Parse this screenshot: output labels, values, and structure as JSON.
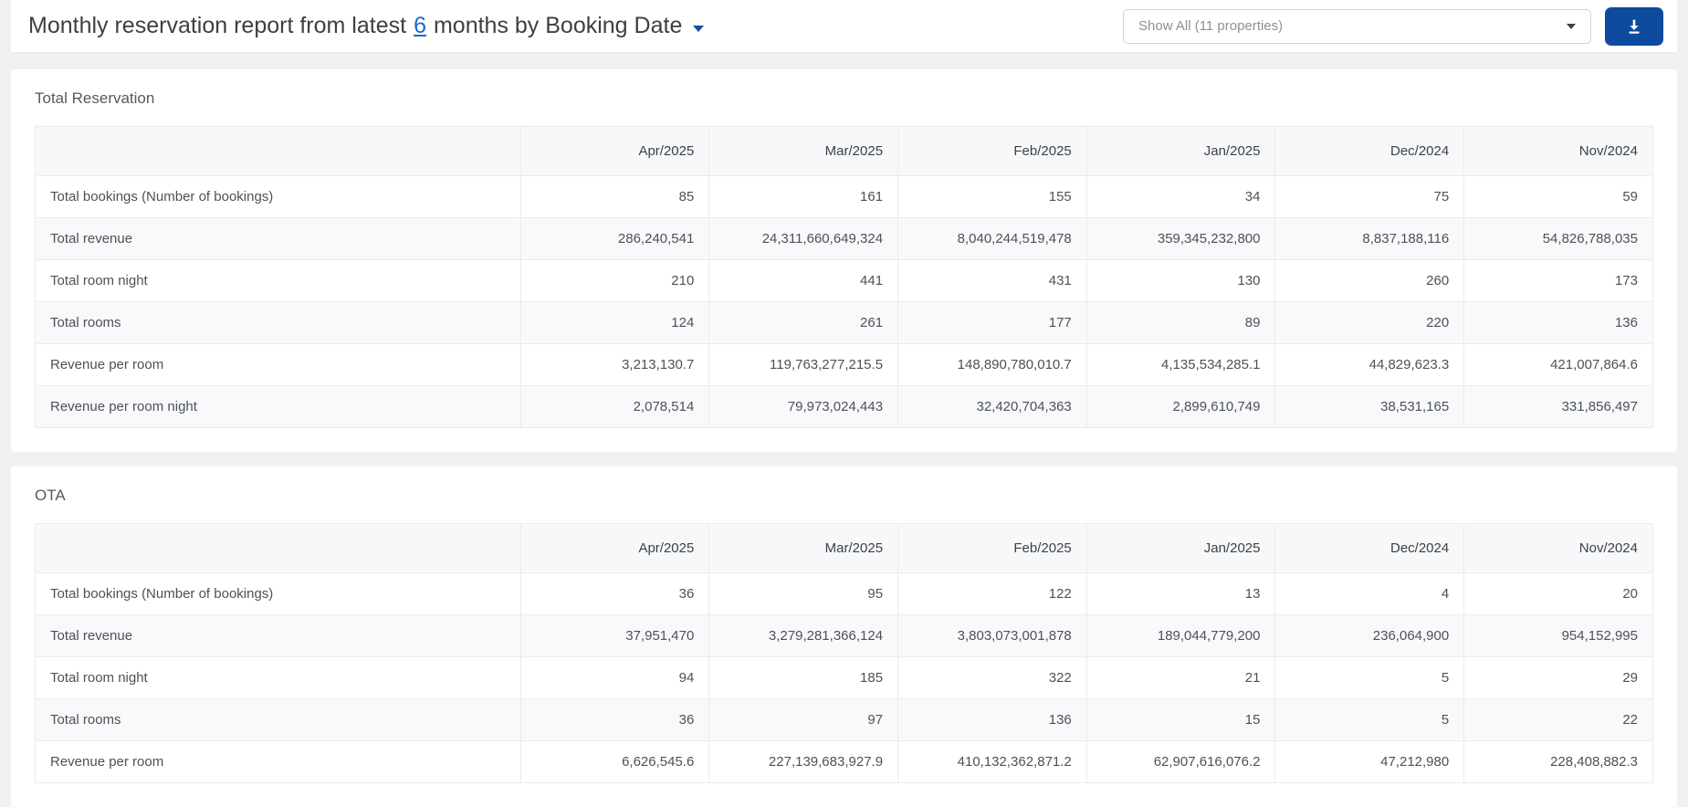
{
  "header": {
    "title_prefix": "Monthly reservation report from latest",
    "months_link": "6",
    "title_suffix": "months by Booking Date",
    "property_filter": "Show All (11 properties)"
  },
  "icons": {
    "title_caret": "chevron-down-icon",
    "select_caret": "chevron-down-icon",
    "download": "download-icon"
  },
  "colors": {
    "accent_navy": "#0e4a9e",
    "link_blue": "#1769c8",
    "page_background": "#f0f1f3",
    "stripe": "#f8f9fb",
    "header_row": "#f7f8f9"
  },
  "months": [
    "Apr/2025",
    "Mar/2025",
    "Feb/2025",
    "Jan/2025",
    "Dec/2024",
    "Nov/2024"
  ],
  "sections": [
    {
      "title": "Total Reservation",
      "rows": [
        {
          "label": "Total bookings (Number of bookings)",
          "values": [
            "85",
            "161",
            "155",
            "34",
            "75",
            "59"
          ]
        },
        {
          "label": "Total revenue",
          "values": [
            "286,240,541",
            "24,311,660,649,324",
            "8,040,244,519,478",
            "359,345,232,800",
            "8,837,188,116",
            "54,826,788,035"
          ]
        },
        {
          "label": "Total room night",
          "values": [
            "210",
            "441",
            "431",
            "130",
            "260",
            "173"
          ]
        },
        {
          "label": "Total rooms",
          "values": [
            "124",
            "261",
            "177",
            "89",
            "220",
            "136"
          ]
        },
        {
          "label": "Revenue per room",
          "values": [
            "3,213,130.7",
            "119,763,277,215.5",
            "148,890,780,010.7",
            "4,135,534,285.1",
            "44,829,623.3",
            "421,007,864.6"
          ]
        },
        {
          "label": "Revenue per room night",
          "values": [
            "2,078,514",
            "79,973,024,443",
            "32,420,704,363",
            "2,899,610,749",
            "38,531,165",
            "331,856,497"
          ]
        }
      ]
    },
    {
      "title": "OTA",
      "rows": [
        {
          "label": "Total bookings (Number of bookings)",
          "values": [
            "36",
            "95",
            "122",
            "13",
            "4",
            "20"
          ]
        },
        {
          "label": "Total revenue",
          "values": [
            "37,951,470",
            "3,279,281,366,124",
            "3,803,073,001,878",
            "189,044,779,200",
            "236,064,900",
            "954,152,995"
          ]
        },
        {
          "label": "Total room night",
          "values": [
            "94",
            "185",
            "322",
            "21",
            "5",
            "29"
          ]
        },
        {
          "label": "Total rooms",
          "values": [
            "36",
            "97",
            "136",
            "15",
            "5",
            "22"
          ]
        },
        {
          "label": "Revenue per room",
          "values": [
            "6,626,545.6",
            "227,139,683,927.9",
            "410,132,362,871.2",
            "62,907,616,076.2",
            "47,212,980",
            "228,408,882.3"
          ]
        }
      ]
    }
  ]
}
